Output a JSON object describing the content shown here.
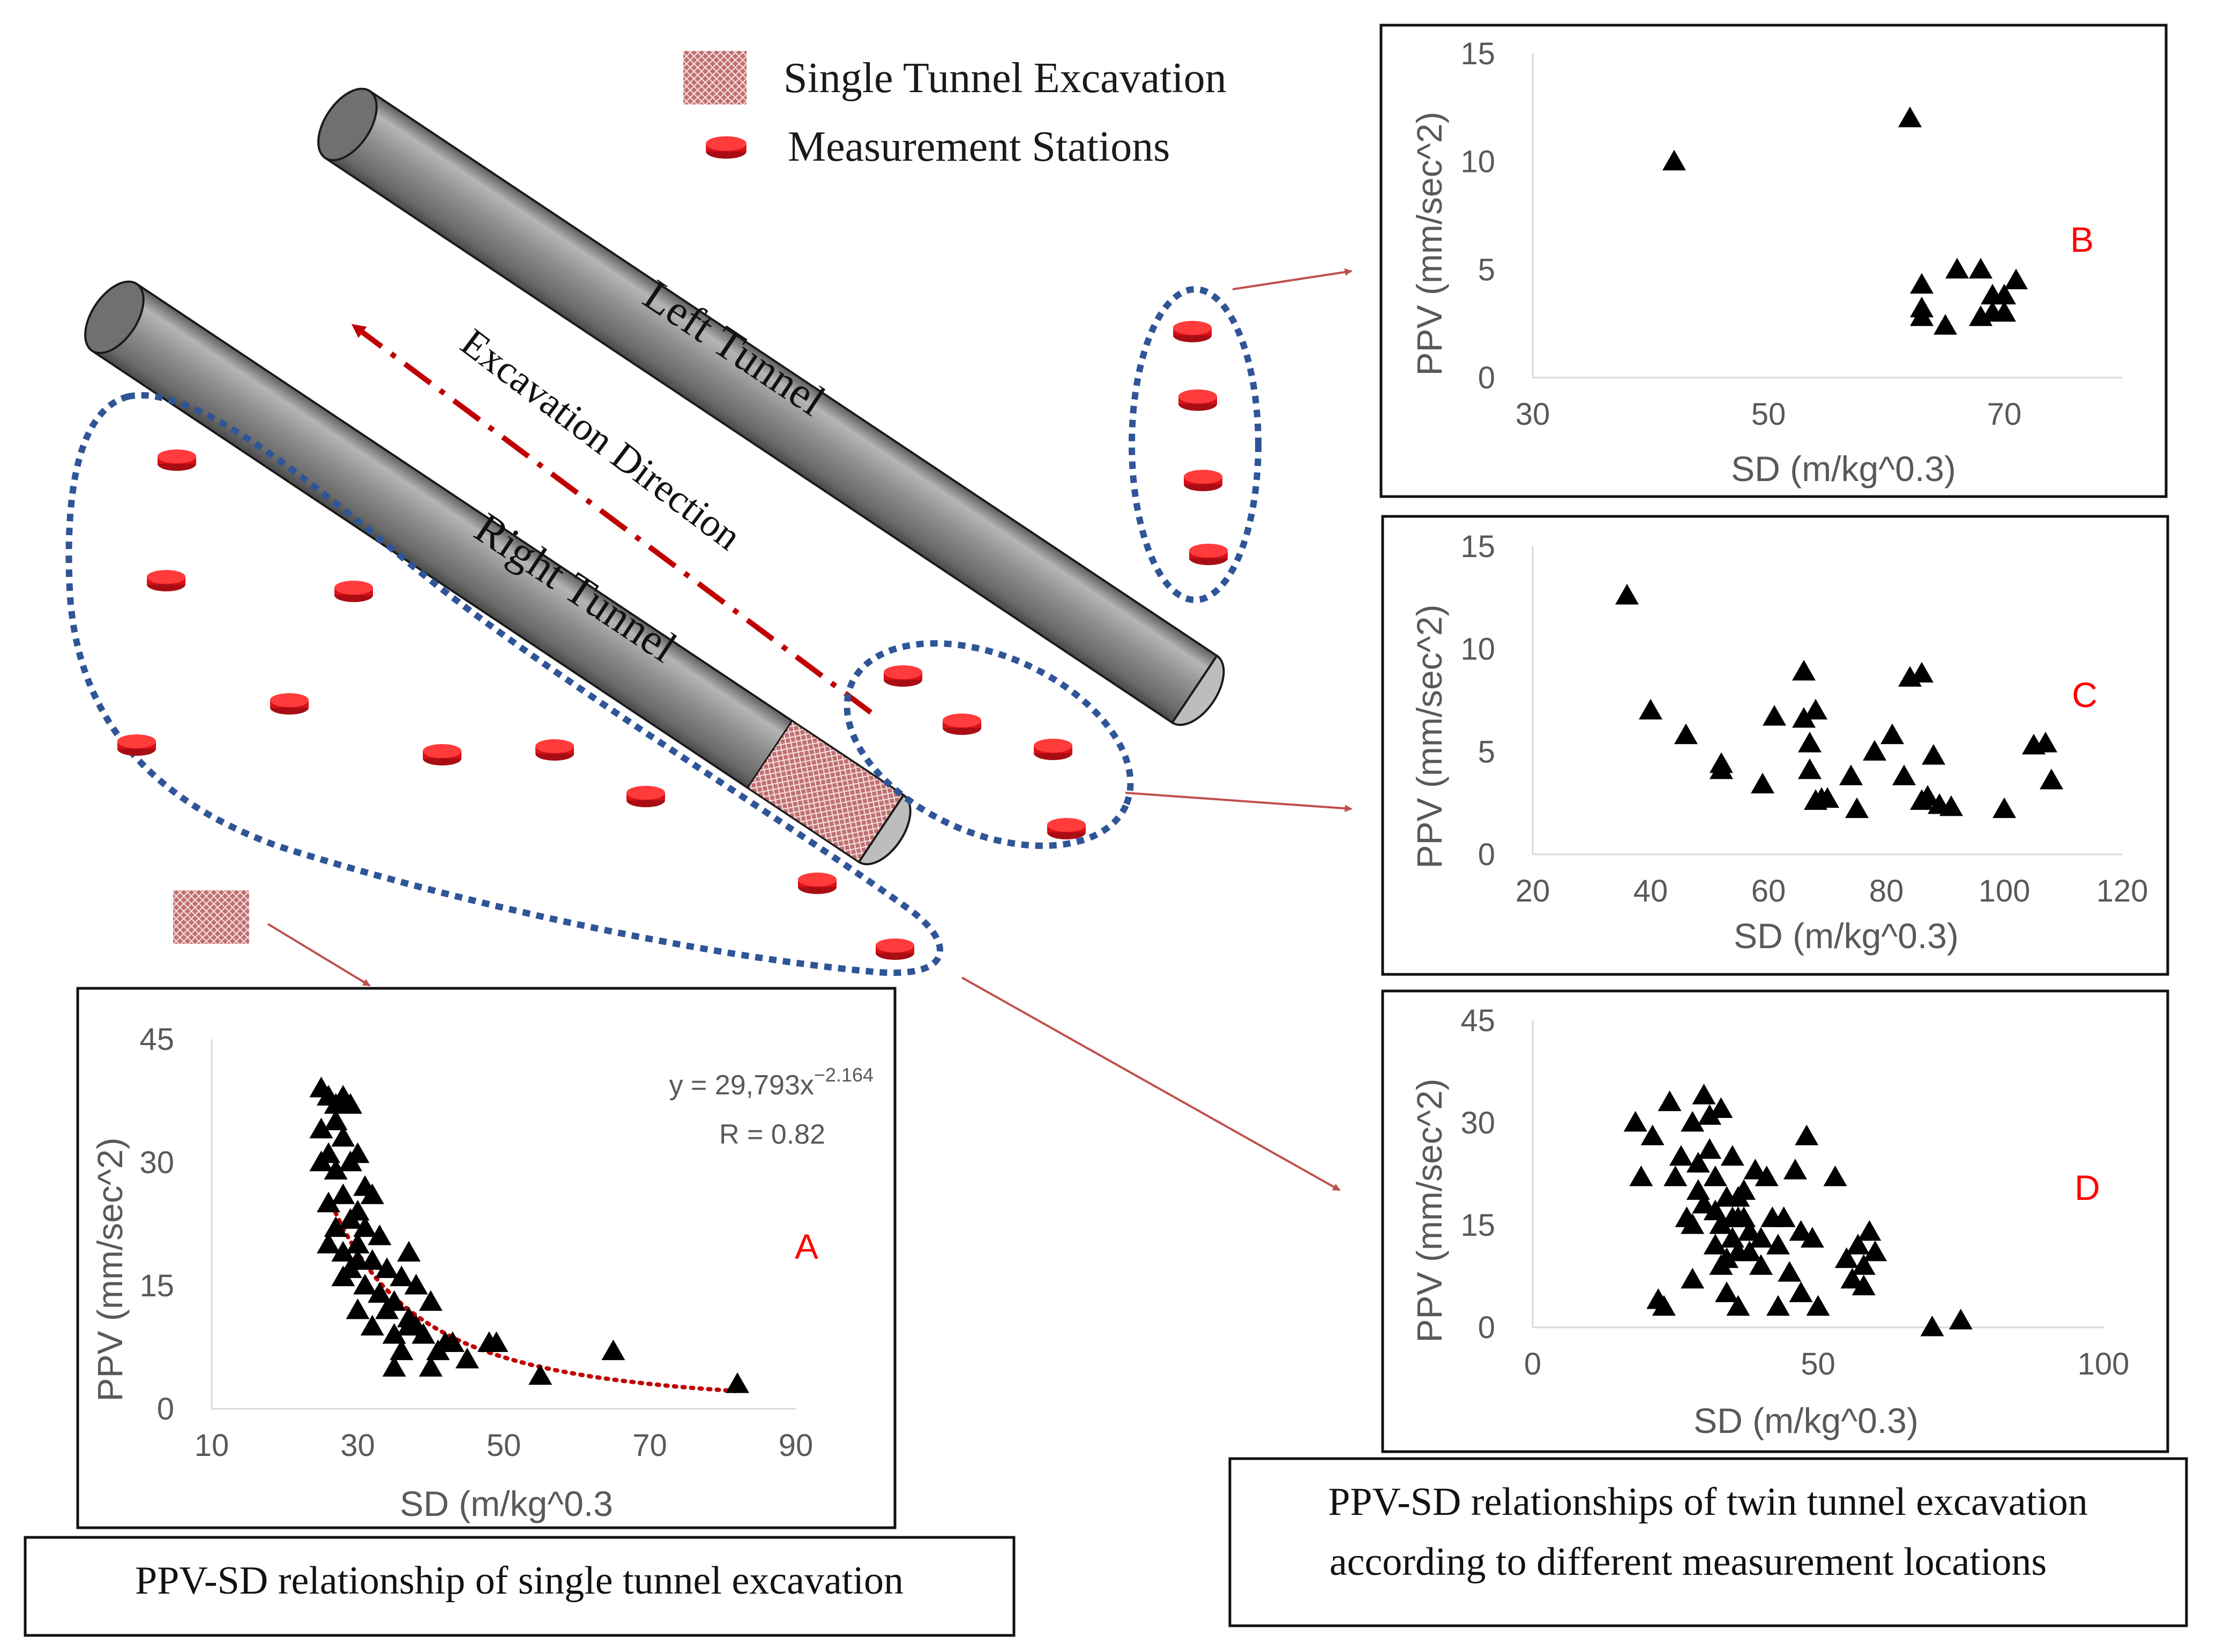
{
  "legend": {
    "excavation_label": "Single Tunnel Excavation",
    "stations_label": "Measurement Stations"
  },
  "tunnels": {
    "left_label": "Left Tunnel",
    "right_label": "Right Tunnel",
    "direction_label": "Excavation Direction"
  },
  "captions": {
    "single": "PPV-SD relationship of single tunnel excavation",
    "twin_line1": "PPV-SD relationships of twin tunnel excavation",
    "twin_line2": "according to different measurement locations"
  },
  "colors": {
    "tunnel": "#8c8c8c",
    "station": "#e8141e",
    "dotted_outline": "#2f5597",
    "arrow": "#c0504d",
    "direction": "#c00000",
    "fit_line": "#c00000",
    "panel_letter": "#ff0000"
  },
  "chart_data": [
    {
      "id": "A",
      "type": "scatter",
      "letter": "A",
      "xlabel": "SD (m/kg^0.3",
      "ylabel": "PPV (mm/sec^2)",
      "xlim": [
        10,
        90
      ],
      "ylim": [
        0,
        45
      ],
      "xticks": [
        "10",
        "30",
        "50",
        "70",
        "90"
      ],
      "yticks": [
        "0",
        "15",
        "30",
        "45"
      ],
      "equation": "y = 29,793x",
      "equation_exponent": "−2.164",
      "r_value": "R = 0.82",
      "fit": {
        "type": "power",
        "a": 29793,
        "b": -2.164,
        "x_range": [
          26,
          82
        ]
      },
      "x": [
        25,
        26,
        27,
        28,
        29,
        25,
        27,
        28,
        30,
        25,
        26,
        27,
        29,
        31,
        32,
        26,
        28,
        30,
        27,
        29,
        31,
        33,
        28,
        30,
        32,
        34,
        36,
        37,
        29,
        31,
        33,
        35,
        38,
        30,
        32,
        34,
        37,
        40,
        35,
        38,
        42,
        36,
        41,
        45,
        39,
        43,
        48,
        49,
        55,
        65,
        82,
        26,
        28,
        30,
        33,
        35,
        37,
        40
      ],
      "y": [
        39,
        38,
        37,
        38,
        37,
        34,
        35,
        33,
        31,
        30,
        31,
        29,
        30,
        27,
        26,
        25,
        26,
        24,
        22,
        23,
        22,
        21,
        19,
        20,
        18,
        17,
        16,
        19,
        17,
        15,
        14,
        13,
        15,
        12,
        10,
        12,
        11,
        13,
        9,
        10,
        8,
        7,
        7,
        6,
        9,
        8,
        8,
        8,
        4,
        7,
        3,
        20,
        16,
        18,
        14,
        5,
        10,
        5
      ]
    },
    {
      "id": "B",
      "type": "scatter",
      "letter": "B",
      "xlabel": "SD (m/kg^0.3)",
      "ylabel": "PPV (mm/sec^2)",
      "xlim": [
        30,
        80
      ],
      "ylim": [
        0,
        15
      ],
      "xtick_values": [
        30,
        50,
        70
      ],
      "xticks": [
        "30",
        "50",
        "70"
      ],
      "yticks": [
        "0",
        "5",
        "10",
        "15"
      ],
      "x": [
        42,
        62,
        63,
        63,
        63,
        65,
        66,
        68,
        68,
        69,
        69,
        70,
        70,
        71
      ],
      "y": [
        10,
        12,
        4.3,
        3.2,
        2.8,
        2.4,
        5,
        5,
        2.8,
        3.8,
        3,
        3,
        3.8,
        4.5
      ]
    },
    {
      "id": "C",
      "type": "scatter",
      "letter": "C",
      "xlabel": "SD (m/kg^0.3)",
      "ylabel": "PPV (mm/sec^2)",
      "xlim": [
        20,
        120
      ],
      "ylim": [
        0,
        15
      ],
      "xticks": [
        "20",
        "40",
        "60",
        "80",
        "100",
        "120"
      ],
      "yticks": [
        "0",
        "5",
        "10",
        "15"
      ],
      "x": [
        36,
        40,
        46,
        52,
        52,
        59,
        61,
        66,
        66,
        67,
        67,
        68,
        68,
        69,
        70,
        74,
        75,
        78,
        81,
        83,
        84,
        86,
        86,
        87,
        88,
        89,
        91,
        100,
        105,
        107,
        108
      ],
      "y": [
        12.6,
        7,
        5.8,
        4.4,
        4.1,
        3.4,
        6.7,
        8.9,
        6.6,
        5.4,
        4.1,
        2.6,
        7,
        2.7,
        2.7,
        3.8,
        2.2,
        5,
        5.8,
        3.8,
        8.6,
        8.8,
        2.6,
        2.8,
        4.8,
        2.4,
        2.3,
        2.2,
        5.3,
        5.4,
        3.6
      ]
    },
    {
      "id": "D",
      "type": "scatter",
      "letter": "D",
      "xlabel": "SD (m/kg^0.3)",
      "ylabel": "PPV (mm/sec^2)",
      "xlim": [
        0,
        100
      ],
      "ylim": [
        0,
        45
      ],
      "xticks": [
        "0",
        "50",
        "100"
      ],
      "yticks": [
        "0",
        "15",
        "30",
        "45"
      ],
      "x": [
        18,
        19,
        21,
        22,
        23,
        24,
        26,
        27,
        28,
        28,
        29,
        29,
        30,
        30,
        31,
        31,
        32,
        32,
        32,
        33,
        33,
        34,
        34,
        34,
        35,
        35,
        35,
        36,
        36,
        36,
        37,
        37,
        38,
        38,
        39,
        40,
        40,
        41,
        42,
        43,
        43,
        44,
        45,
        46,
        47,
        47,
        48,
        49,
        50,
        53,
        55,
        56,
        57,
        58,
        58,
        59,
        60,
        70,
        75,
        25,
        28,
        33,
        36
      ],
      "y": [
        30,
        22,
        28,
        4,
        3,
        33,
        25,
        16,
        7,
        30,
        20,
        24,
        18,
        34,
        31,
        26,
        22,
        17,
        12,
        32,
        15,
        5,
        19,
        10,
        13,
        25,
        16,
        3,
        19,
        11,
        16,
        20,
        14,
        11,
        23,
        13,
        9,
        22,
        16,
        3,
        12,
        16,
        8,
        23,
        14,
        5,
        28,
        13,
        3,
        22,
        10,
        7,
        12,
        9,
        6,
        14,
        11,
        0,
        1,
        22,
        15,
        9,
        16
      ]
    }
  ]
}
